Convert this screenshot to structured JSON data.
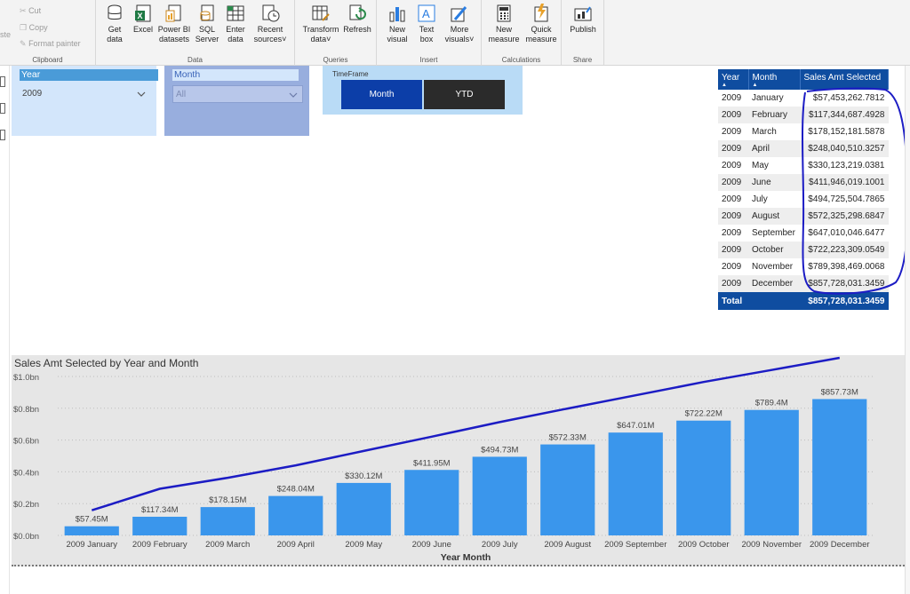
{
  "ribbon": {
    "clipboard": {
      "paste_label": "ste",
      "cut_label": "Cut",
      "copy_label": "Copy",
      "format_painter_label": "Format painter",
      "group_label": "Clipboard"
    },
    "data": {
      "get_data_label": "Get data",
      "excel_label": "Excel",
      "pbi_label_1": "Power BI",
      "pbi_label_2": "datasets",
      "sql_label_1": "SQL",
      "sql_label_2": "Server",
      "enter_label_1": "Enter",
      "enter_label_2": "data",
      "recent_label_1": "Recent",
      "recent_label_2": "sources",
      "group_label": "Data"
    },
    "queries": {
      "transform_label_1": "Transform",
      "transform_label_2": "data",
      "refresh_label": "Refresh",
      "group_label": "Queries"
    },
    "insert": {
      "new_visual_1": "New",
      "new_visual_2": "visual",
      "text_box_1": "Text",
      "text_box_2": "box",
      "more_visuals_1": "More",
      "more_visuals_2": "visuals",
      "group_label": "Insert"
    },
    "calculations": {
      "new_measure_1": "New",
      "new_measure_2": "measure",
      "quick_measure_1": "Quick",
      "quick_measure_2": "measure",
      "group_label": "Calculations"
    },
    "share": {
      "publish_label": "Publish",
      "group_label": "Share"
    }
  },
  "slicers": {
    "year": {
      "title": "Year",
      "value": "2009"
    },
    "month": {
      "title": "Month",
      "value": "All"
    },
    "timeframe": {
      "title": "TimeFrame",
      "month_label": "Month",
      "ytd_label": "YTD"
    }
  },
  "table": {
    "headers": [
      "Year",
      "Month",
      "Sales Amt Selected"
    ],
    "rows": [
      [
        "2009",
        "January",
        "$57,453,262.7812"
      ],
      [
        "2009",
        "February",
        "$117,344,687.4928"
      ],
      [
        "2009",
        "March",
        "$178,152,181.5878"
      ],
      [
        "2009",
        "April",
        "$248,040,510.3257"
      ],
      [
        "2009",
        "May",
        "$330,123,219.0381"
      ],
      [
        "2009",
        "June",
        "$411,946,019.1001"
      ],
      [
        "2009",
        "July",
        "$494,725,504.7865"
      ],
      [
        "2009",
        "August",
        "$572,325,298.6847"
      ],
      [
        "2009",
        "September",
        "$647,010,046.6477"
      ],
      [
        "2009",
        "October",
        "$722,223,309.0549"
      ],
      [
        "2009",
        "November",
        "$789,398,469.0068"
      ],
      [
        "2009",
        "December",
        "$857,728,031.3459"
      ]
    ],
    "total_label": "Total",
    "total_value": "$857,728,031.3459"
  },
  "chart_data": {
    "type": "bar",
    "title": "Sales Amt Selected by Year and Month",
    "xlabel": "Year Month",
    "ylabel": "",
    "categories": [
      "2009 January",
      "2009 February",
      "2009 March",
      "2009 April",
      "2009 May",
      "2009 June",
      "2009 July",
      "2009 August",
      "2009 September",
      "2009 October",
      "2009 November",
      "2009 December"
    ],
    "values": [
      57.45,
      117.34,
      178.15,
      248.04,
      330.12,
      411.95,
      494.73,
      572.33,
      647.01,
      722.22,
      789.4,
      857.73
    ],
    "value_labels": [
      "$57.45M",
      "$117.34M",
      "$178.15M",
      "$248.04M",
      "$330.12M",
      "$411.95M",
      "$494.73M",
      "$572.33M",
      "$647.01M",
      "$722.22M",
      "$789.4M",
      "$857.73M"
    ],
    "y_ticks": [
      "$0.0bn",
      "$0.2bn",
      "$0.4bn",
      "$0.6bn",
      "$0.8bn",
      "$1.0bn"
    ],
    "ylim": [
      0,
      1000
    ],
    "grid": true,
    "bar_color": "#3a96ec",
    "annotation_line_color": "#1c1cc4"
  }
}
